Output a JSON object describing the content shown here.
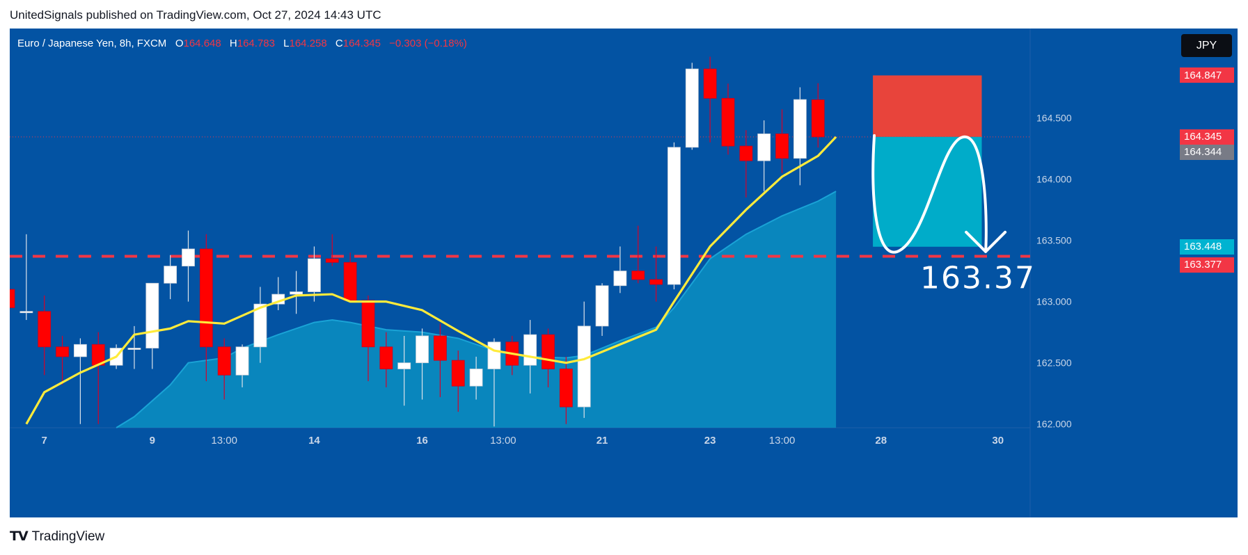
{
  "publisher": "UnitedSignals published on TradingView.com, Oct 27, 2024 14:43 UTC",
  "legend": {
    "symbol": "Euro / Japanese Yen, 8h, FXCM",
    "o_label": "O",
    "o": "164.648",
    "h_label": "H",
    "h": "164.783",
    "l_label": "L",
    "l": "164.258",
    "c_label": "C",
    "c": "164.345",
    "change": "−0.303 (−0.18%)"
  },
  "currency": "JPY",
  "price_tags": [
    {
      "text": "164.847",
      "price": 164.847,
      "color": "#f23645"
    },
    {
      "text": "164.345",
      "price": 164.345,
      "color": "#f23645"
    },
    {
      "text": "164.344",
      "price": 164.22,
      "color": "#787b86"
    },
    {
      "text": "163.448",
      "price": 163.448,
      "color": "#00b3d1"
    },
    {
      "text": "163.377",
      "price": 163.3,
      "color": "#f23645"
    }
  ],
  "annotation": {
    "text": "163.37",
    "price": 163.37
  },
  "logo_text": "TradingView",
  "chart_data": {
    "type": "candlestick",
    "title": "Euro / Japanese Yen, 8h, FXCM",
    "ylim": [
      161.97,
      165.23
    ],
    "y_ticks": [
      162.0,
      162.5,
      163.0,
      163.5,
      164.0,
      164.5
    ],
    "y_tick_labels": [
      "162.000",
      "162.500",
      "163.000",
      "163.500",
      "164.000",
      "164.500"
    ],
    "x_ticks": [
      {
        "label": "7",
        "index": 2,
        "bold": true
      },
      {
        "label": "9",
        "index": 8,
        "bold": true
      },
      {
        "label": "13:00",
        "index": 12,
        "bold": false
      },
      {
        "label": "14",
        "index": 17,
        "bold": true
      },
      {
        "label": "16",
        "index": 23,
        "bold": true
      },
      {
        "label": "13:00",
        "index": 27.5,
        "bold": false
      },
      {
        "label": "21",
        "index": 33,
        "bold": true
      },
      {
        "label": "23",
        "index": 39,
        "bold": true
      },
      {
        "label": "13:00",
        "index": 43,
        "bold": false
      },
      {
        "label": "28",
        "index": 48.5,
        "bold": true
      },
      {
        "label": "30",
        "index": 55,
        "bold": true
      }
    ],
    "candles": [
      {
        "o": 163.1,
        "h": 163.25,
        "l": 162.95,
        "c": 162.95
      },
      {
        "o": 162.92,
        "h": 163.55,
        "l": 162.85,
        "c": 162.92
      },
      {
        "o": 162.92,
        "h": 163.05,
        "l": 162.4,
        "c": 162.63
      },
      {
        "o": 162.63,
        "h": 162.72,
        "l": 162.32,
        "c": 162.55
      },
      {
        "o": 162.55,
        "h": 162.7,
        "l": 162.0,
        "c": 162.65
      },
      {
        "o": 162.65,
        "h": 162.75,
        "l": 162.0,
        "c": 162.48
      },
      {
        "o": 162.48,
        "h": 162.65,
        "l": 162.45,
        "c": 162.62
      },
      {
        "o": 162.62,
        "h": 162.8,
        "l": 162.45,
        "c": 162.62
      },
      {
        "o": 162.62,
        "h": 163.15,
        "l": 162.45,
        "c": 163.15
      },
      {
        "o": 163.15,
        "h": 163.38,
        "l": 163.02,
        "c": 163.29
      },
      {
        "o": 163.29,
        "h": 163.58,
        "l": 163.0,
        "c": 163.43
      },
      {
        "o": 163.43,
        "h": 163.55,
        "l": 162.35,
        "c": 162.63
      },
      {
        "o": 162.63,
        "h": 162.7,
        "l": 162.2,
        "c": 162.4
      },
      {
        "o": 162.4,
        "h": 162.65,
        "l": 162.3,
        "c": 162.63
      },
      {
        "o": 162.63,
        "h": 163.12,
        "l": 162.5,
        "c": 162.98
      },
      {
        "o": 162.98,
        "h": 163.2,
        "l": 162.93,
        "c": 163.06
      },
      {
        "o": 163.06,
        "h": 163.25,
        "l": 162.9,
        "c": 163.08
      },
      {
        "o": 163.08,
        "h": 163.45,
        "l": 163.0,
        "c": 163.35
      },
      {
        "o": 163.35,
        "h": 163.55,
        "l": 163.29,
        "c": 163.32
      },
      {
        "o": 163.32,
        "h": 163.4,
        "l": 163.0,
        "c": 163.01
      },
      {
        "o": 163.01,
        "h": 163.05,
        "l": 162.35,
        "c": 162.63
      },
      {
        "o": 162.63,
        "h": 162.75,
        "l": 162.3,
        "c": 162.45
      },
      {
        "o": 162.45,
        "h": 162.72,
        "l": 162.15,
        "c": 162.5
      },
      {
        "o": 162.5,
        "h": 162.78,
        "l": 162.2,
        "c": 162.72
      },
      {
        "o": 162.72,
        "h": 162.82,
        "l": 162.22,
        "c": 162.52
      },
      {
        "o": 162.52,
        "h": 162.6,
        "l": 162.1,
        "c": 162.31
      },
      {
        "o": 162.31,
        "h": 162.55,
        "l": 162.2,
        "c": 162.45
      },
      {
        "o": 162.45,
        "h": 162.7,
        "l": 161.98,
        "c": 162.67
      },
      {
        "o": 162.67,
        "h": 162.72,
        "l": 162.4,
        "c": 162.48
      },
      {
        "o": 162.48,
        "h": 162.85,
        "l": 162.25,
        "c": 162.73
      },
      {
        "o": 162.73,
        "h": 162.78,
        "l": 162.3,
        "c": 162.45
      },
      {
        "o": 162.45,
        "h": 162.55,
        "l": 162.0,
        "c": 162.14
      },
      {
        "o": 162.14,
        "h": 163.0,
        "l": 162.05,
        "c": 162.8
      },
      {
        "o": 162.8,
        "h": 163.15,
        "l": 162.72,
        "c": 163.13
      },
      {
        "o": 163.13,
        "h": 163.45,
        "l": 163.07,
        "c": 163.25
      },
      {
        "o": 163.25,
        "h": 163.62,
        "l": 163.15,
        "c": 163.18
      },
      {
        "o": 163.18,
        "h": 163.45,
        "l": 163.0,
        "c": 163.14
      },
      {
        "o": 163.14,
        "h": 164.3,
        "l": 163.1,
        "c": 164.26
      },
      {
        "o": 164.26,
        "h": 164.95,
        "l": 164.24,
        "c": 164.9
      },
      {
        "o": 164.9,
        "h": 165.0,
        "l": 164.3,
        "c": 164.66
      },
      {
        "o": 164.66,
        "h": 164.78,
        "l": 164.2,
        "c": 164.27
      },
      {
        "o": 164.27,
        "h": 164.4,
        "l": 163.85,
        "c": 164.15
      },
      {
        "o": 164.15,
        "h": 164.48,
        "l": 163.9,
        "c": 164.37
      },
      {
        "o": 164.37,
        "h": 164.57,
        "l": 164.05,
        "c": 164.17
      },
      {
        "o": 164.17,
        "h": 164.75,
        "l": 163.95,
        "c": 164.65
      },
      {
        "o": 164.648,
        "h": 164.783,
        "l": 164.258,
        "c": 164.345
      }
    ],
    "ma_line": [
      {
        "i": 1,
        "v": 162.0
      },
      {
        "i": 2,
        "v": 162.26
      },
      {
        "i": 4,
        "v": 162.42
      },
      {
        "i": 6,
        "v": 162.55
      },
      {
        "i": 7,
        "v": 162.73
      },
      {
        "i": 9,
        "v": 162.78
      },
      {
        "i": 10,
        "v": 162.84
      },
      {
        "i": 12,
        "v": 162.82
      },
      {
        "i": 14,
        "v": 162.95
      },
      {
        "i": 16,
        "v": 163.05
      },
      {
        "i": 18,
        "v": 163.06
      },
      {
        "i": 19,
        "v": 163.0
      },
      {
        "i": 21,
        "v": 163.0
      },
      {
        "i": 23,
        "v": 162.93
      },
      {
        "i": 25,
        "v": 162.76
      },
      {
        "i": 27,
        "v": 162.6
      },
      {
        "i": 29,
        "v": 162.55
      },
      {
        "i": 31,
        "v": 162.5
      },
      {
        "i": 32,
        "v": 162.53
      },
      {
        "i": 34,
        "v": 162.65
      },
      {
        "i": 36,
        "v": 162.77
      },
      {
        "i": 37,
        "v": 163.0
      },
      {
        "i": 39,
        "v": 163.45
      },
      {
        "i": 41,
        "v": 163.75
      },
      {
        "i": 43,
        "v": 164.02
      },
      {
        "i": 45,
        "v": 164.19
      },
      {
        "i": 46,
        "v": 164.345
      }
    ],
    "area_band": [
      {
        "i": 6,
        "v": 161.97
      },
      {
        "i": 7,
        "v": 162.06
      },
      {
        "i": 9,
        "v": 162.32
      },
      {
        "i": 10,
        "v": 162.5
      },
      {
        "i": 12,
        "v": 162.54
      },
      {
        "i": 13,
        "v": 162.62
      },
      {
        "i": 15,
        "v": 162.73
      },
      {
        "i": 17,
        "v": 162.83
      },
      {
        "i": 18,
        "v": 162.85
      },
      {
        "i": 19,
        "v": 162.83
      },
      {
        "i": 21,
        "v": 162.77
      },
      {
        "i": 23,
        "v": 162.75
      },
      {
        "i": 25,
        "v": 162.7
      },
      {
        "i": 27,
        "v": 162.6
      },
      {
        "i": 29,
        "v": 162.55
      },
      {
        "i": 31,
        "v": 162.54
      },
      {
        "i": 32,
        "v": 162.56
      },
      {
        "i": 34,
        "v": 162.68
      },
      {
        "i": 36,
        "v": 162.79
      },
      {
        "i": 37,
        "v": 162.95
      },
      {
        "i": 39,
        "v": 163.35
      },
      {
        "i": 41,
        "v": 163.55
      },
      {
        "i": 43,
        "v": 163.7
      },
      {
        "i": 45,
        "v": 163.82
      },
      {
        "i": 46,
        "v": 163.9
      }
    ],
    "horizontal_dashed_line": 163.37,
    "short_position": {
      "from_index": 48.05,
      "to_index": 54.1,
      "stop": 164.847,
      "entry": 164.345,
      "target": 163.448
    },
    "current_price_line": 164.345
  }
}
